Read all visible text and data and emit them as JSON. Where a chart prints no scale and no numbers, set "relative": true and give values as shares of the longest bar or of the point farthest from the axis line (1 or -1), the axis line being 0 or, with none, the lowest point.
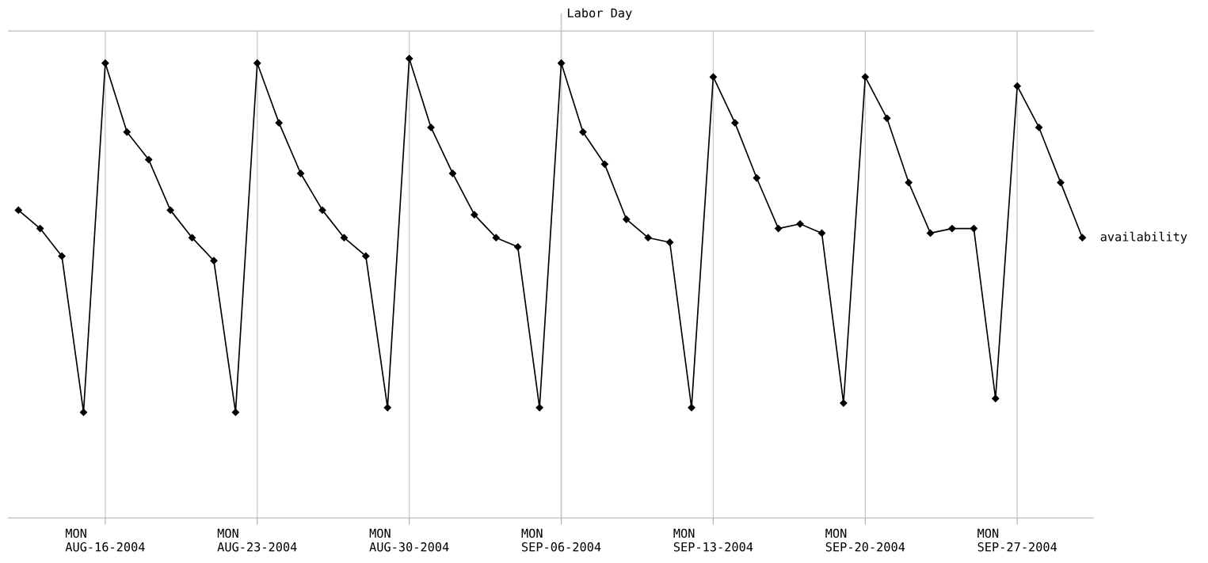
{
  "chart_data": {
    "type": "line",
    "relative": true,
    "x": [
      "2004-08-12",
      "2004-08-13",
      "2004-08-14",
      "2004-08-15",
      "2004-08-16",
      "2004-08-17",
      "2004-08-18",
      "2004-08-19",
      "2004-08-20",
      "2004-08-21",
      "2004-08-22",
      "2004-08-23",
      "2004-08-24",
      "2004-08-25",
      "2004-08-26",
      "2004-08-27",
      "2004-08-28",
      "2004-08-29",
      "2004-08-30",
      "2004-08-31",
      "2004-09-01",
      "2004-09-02",
      "2004-09-03",
      "2004-09-04",
      "2004-09-05",
      "2004-09-06",
      "2004-09-07",
      "2004-09-08",
      "2004-09-09",
      "2004-09-10",
      "2004-09-11",
      "2004-09-12",
      "2004-09-13",
      "2004-09-14",
      "2004-09-15",
      "2004-09-16",
      "2004-09-17",
      "2004-09-18",
      "2004-09-19",
      "2004-09-20",
      "2004-09-21",
      "2004-09-22",
      "2004-09-23",
      "2004-09-24",
      "2004-09-25",
      "2004-09-26",
      "2004-09-27",
      "2004-09-28",
      "2004-09-29",
      "2004-09-30"
    ],
    "series": [
      {
        "name": "availability",
        "color": "#000000",
        "values": [
          0.67,
          0.63,
          0.57,
          0.23,
          0.99,
          0.84,
          0.78,
          0.67,
          0.61,
          0.56,
          0.23,
          0.99,
          0.86,
          0.75,
          0.67,
          0.61,
          0.57,
          0.24,
          1.0,
          0.85,
          0.75,
          0.66,
          0.61,
          0.59,
          0.24,
          0.99,
          0.84,
          0.77,
          0.65,
          0.61,
          0.6,
          0.24,
          0.96,
          0.86,
          0.74,
          0.63,
          0.64,
          0.62,
          0.25,
          0.96,
          0.87,
          0.73,
          0.62,
          0.63,
          0.63,
          0.26,
          0.94,
          0.85,
          0.73,
          0.61
        ]
      }
    ],
    "xlim": [
      "2004-08-11T13:00",
      "2004-09-30T12:00"
    ],
    "xticks": [
      {
        "value": "2004-08-16",
        "label": "MON\nAUG-16-2004"
      },
      {
        "value": "2004-08-23",
        "label": "MON\nAUG-23-2004"
      },
      {
        "value": "2004-08-30",
        "label": "MON\nAUG-30-2004"
      },
      {
        "value": "2004-09-06",
        "label": "MON\nSEP-06-2004"
      },
      {
        "value": "2004-09-13",
        "label": "MON\nSEP-13-2004"
      },
      {
        "value": "2004-09-20",
        "label": "MON\nSEP-20-2004"
      },
      {
        "value": "2004-09-27",
        "label": "MON\nSEP-27-2004"
      }
    ],
    "ref_lines": [
      {
        "axis": "x",
        "value": "2004-09-06",
        "label": "Labor Day",
        "color": "#cccccc"
      }
    ],
    "grid": "x",
    "marker": "diamond",
    "line_style": "solid",
    "legend": false
  }
}
